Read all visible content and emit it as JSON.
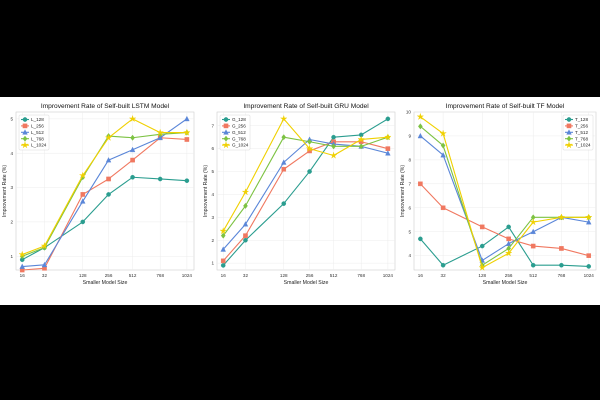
{
  "chart_data": [
    {
      "type": "line",
      "title": "Improvement Rate of Self-built LSTM Model",
      "xlabel": "Smaller Model Size",
      "ylabel": "Improvement Rate (%)",
      "x": [
        "16",
        "32",
        "128",
        "256",
        "512",
        "768",
        "1024"
      ],
      "ylim": [
        0.6,
        5.2
      ],
      "yticks": [
        1,
        2,
        3,
        4,
        5
      ],
      "grid": true,
      "legend": "top-left",
      "series": [
        {
          "name": "L_128",
          "color": "#2a9d8f",
          "marker": "circle",
          "values": [
            0.9,
            1.25,
            2.0,
            2.8,
            3.3,
            3.25,
            3.2
          ]
        },
        {
          "name": "L_256",
          "color": "#f07860",
          "marker": "square",
          "values": [
            0.6,
            0.65,
            2.8,
            3.25,
            3.8,
            4.45,
            4.4
          ]
        },
        {
          "name": "L_512",
          "color": "#5a86d8",
          "marker": "triangle",
          "values": [
            0.7,
            0.75,
            2.6,
            3.8,
            4.1,
            4.45,
            5.0
          ]
        },
        {
          "name": "L_768",
          "color": "#7cc242",
          "marker": "diamond",
          "values": [
            1.0,
            1.25,
            3.3,
            4.5,
            4.45,
            4.55,
            4.6
          ]
        },
        {
          "name": "L_1024",
          "color": "#f0d000",
          "marker": "star",
          "values": [
            1.05,
            1.3,
            3.35,
            4.45,
            5.0,
            4.6,
            4.6
          ]
        }
      ]
    },
    {
      "type": "line",
      "title": "Improvement Rate of Self-built GRU Model",
      "xlabel": "Smaller Model Size",
      "ylabel": "Improvement Rate (%)",
      "x": [
        "16",
        "32",
        "128",
        "256",
        "512",
        "768",
        "1024"
      ],
      "ylim": [
        0.7,
        7.6
      ],
      "yticks": [
        1,
        2,
        3,
        4,
        5,
        6,
        7
      ],
      "grid": true,
      "legend": "top-left",
      "series": [
        {
          "name": "G_128",
          "color": "#2a9d8f",
          "marker": "circle",
          "values": [
            0.9,
            2.0,
            3.6,
            5.0,
            6.5,
            6.6,
            7.3
          ]
        },
        {
          "name": "G_256",
          "color": "#f07860",
          "marker": "square",
          "values": [
            1.1,
            2.2,
            5.1,
            5.9,
            6.3,
            6.3,
            6.0
          ]
        },
        {
          "name": "G_512",
          "color": "#5a86d8",
          "marker": "triangle",
          "values": [
            1.6,
            2.7,
            5.4,
            6.4,
            6.2,
            6.1,
            5.8
          ]
        },
        {
          "name": "G_768",
          "color": "#7cc242",
          "marker": "diamond",
          "values": [
            2.2,
            3.5,
            6.5,
            6.3,
            6.1,
            6.1,
            6.5
          ]
        },
        {
          "name": "G_1024",
          "color": "#f0d000",
          "marker": "star",
          "values": [
            2.4,
            4.1,
            7.3,
            6.0,
            5.7,
            6.4,
            6.5
          ]
        }
      ]
    },
    {
      "type": "line",
      "title": "Improvement Rate of Self-built TF Model",
      "xlabel": "Smaller Model Size",
      "ylabel": "Improvement Rate (%)",
      "x": [
        "16",
        "32",
        "128",
        "256",
        "512",
        "768",
        "1024"
      ],
      "ylim": [
        3.4,
        10.0
      ],
      "yticks": [
        4,
        5,
        6,
        7,
        8,
        9,
        10
      ],
      "grid": true,
      "legend": "top-right",
      "series": [
        {
          "name": "T_128",
          "color": "#2a9d8f",
          "marker": "circle",
          "values": [
            4.7,
            3.6,
            4.4,
            5.2,
            3.6,
            3.6,
            3.55
          ]
        },
        {
          "name": "T_256",
          "color": "#f07860",
          "marker": "square",
          "values": [
            7.0,
            6.0,
            5.2,
            4.7,
            4.4,
            4.3,
            4.0
          ]
        },
        {
          "name": "T_512",
          "color": "#5a86d8",
          "marker": "triangle",
          "values": [
            9.0,
            8.2,
            3.8,
            4.5,
            5.0,
            5.6,
            5.4
          ]
        },
        {
          "name": "T_768",
          "color": "#7cc242",
          "marker": "diamond",
          "values": [
            9.4,
            8.6,
            3.6,
            4.3,
            5.6,
            5.6,
            5.6
          ]
        },
        {
          "name": "T_1024",
          "color": "#f0d000",
          "marker": "star",
          "values": [
            9.8,
            9.1,
            3.5,
            4.1,
            5.4,
            5.6,
            5.6
          ]
        }
      ]
    }
  ]
}
